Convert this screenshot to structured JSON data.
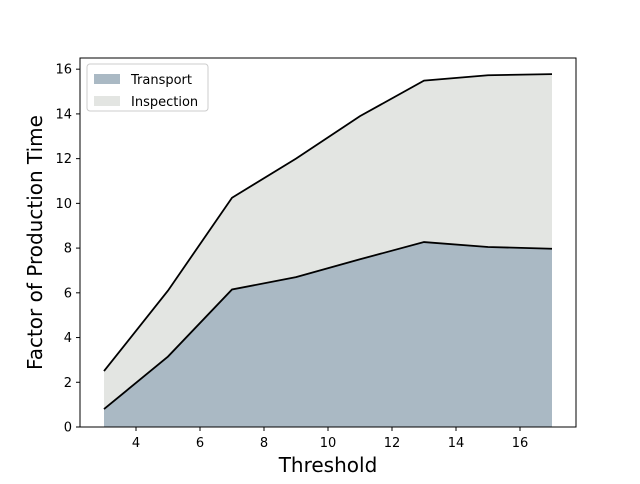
{
  "chart_data": {
    "type": "area",
    "stacked": true,
    "x": [
      3,
      5,
      7,
      9,
      11,
      13,
      15,
      17
    ],
    "series": [
      {
        "name": "Transport",
        "values": [
          0.8,
          3.15,
          6.15,
          6.7,
          7.5,
          8.27,
          8.05,
          7.97
        ],
        "color": "#aab9c4"
      },
      {
        "name": "Inspection",
        "values": [
          1.7,
          2.95,
          4.1,
          5.3,
          6.4,
          7.22,
          7.68,
          7.81
        ],
        "color": "#e3e5e2"
      }
    ],
    "line_color": "#000000",
    "xlabel": "Threshold",
    "ylabel": "Factor of Production Time",
    "xlim": [
      2.25,
      17.75
    ],
    "ylim": [
      0,
      16.5
    ],
    "xticks": [
      4,
      6,
      8,
      10,
      12,
      14,
      16
    ],
    "yticks": [
      0,
      2,
      4,
      6,
      8,
      10,
      12,
      14,
      16
    ],
    "legend_position": "top-left",
    "grid": false
  }
}
